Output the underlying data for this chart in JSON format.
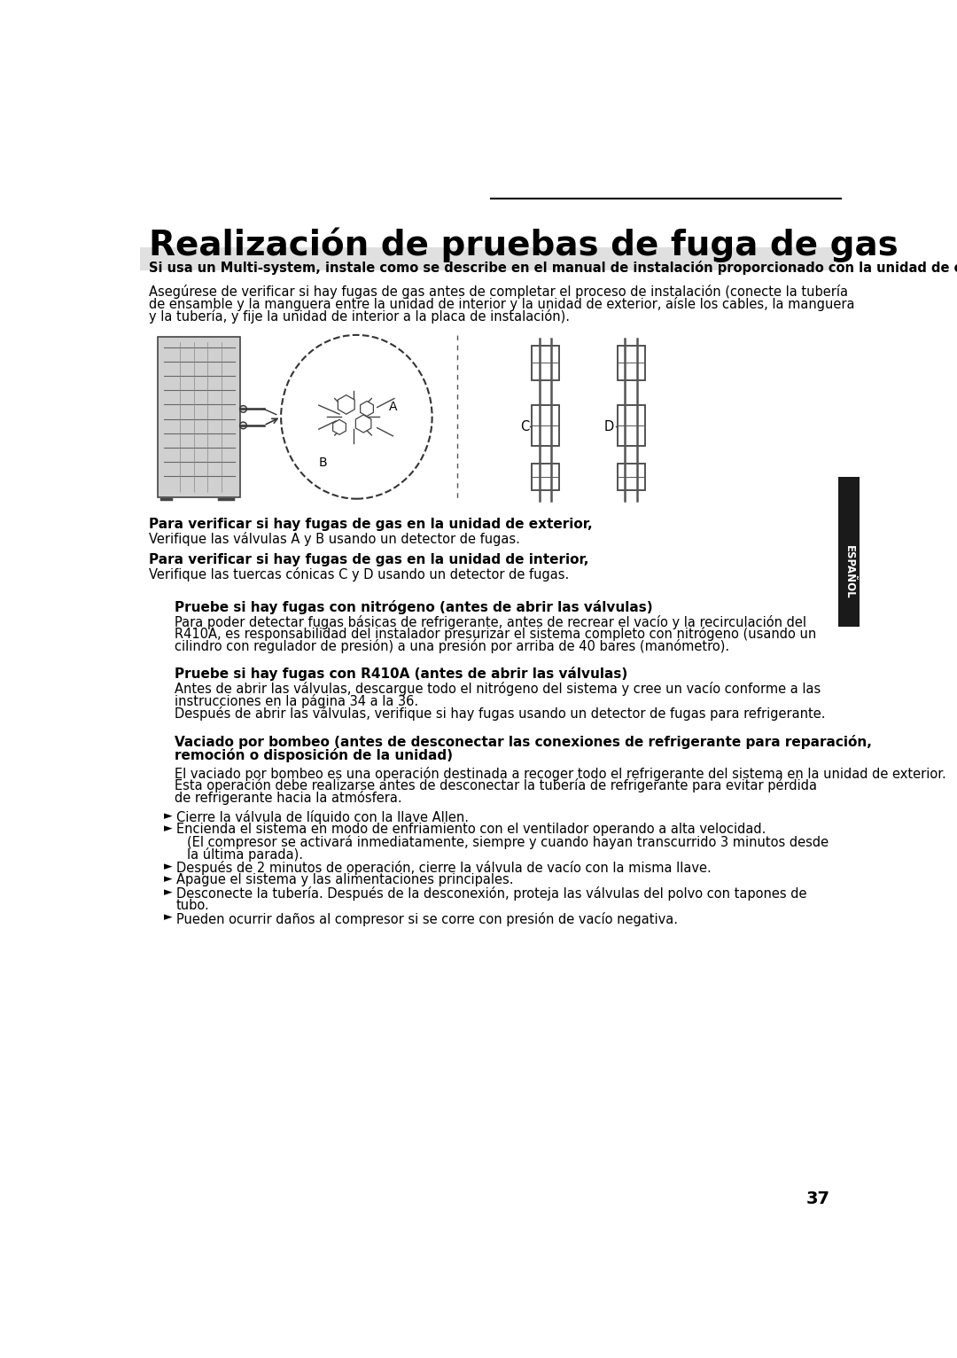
{
  "title": "Realización de pruebas de fuga de gas",
  "page_number": "37",
  "side_tab_text": "ESPAÑOL",
  "bg_color": "#ffffff",
  "note_bg_color": "#e0e0e0",
  "note_text": "Si usa un Multi-system, instale como se describe en el manual de instalación proporcionado con la unidad de exterior.",
  "intro_text": "Asegúrese de verificar si hay fugas de gas antes de completar el proceso de instalación (conecte la tubería de ensamble y la manguera entre la unidad de interior y la unidad de exterior, aísle los cables, la manguera y la tubería, y fije la unidad de interior a la placa de instalación).",
  "section1_heading": "Para verificar si hay fugas de gas en la unidad de exterior,",
  "section1_body": "Verifique las válvulas A y B usando un detector de fugas.",
  "section2_heading": "Para verificar si hay fugas de gas en la unidad de interior,",
  "section2_body": "Verifique las tuercas cónicas C y D usando un detector de fugas.",
  "section3_heading": "Pruebe si hay fugas con nitrógeno (antes de abrir las válvulas)",
  "section3_body": "Para poder detectar fugas básicas de refrigerante, antes de recrear el vacío y la recirculación del R410A, es responsabilidad del instalador presurizar el sistema completo con nitrógeno (usando un cilindro con regulador de presión) a una presión por arriba de 40 bares (manómetro).",
  "section4_heading": "Pruebe si hay fugas con R410A (antes de abrir las válvulas)",
  "section4_body_line1": "Antes de abrir las válvulas, descargue todo el nitrógeno del sistema y cree un vacío conforme a las instrucciones en la página 34 a la 36.",
  "section4_body_line2": "Después de abrir las válvulas, verifique si hay fugas usando un detector de fugas para refrigerante.",
  "section5_heading": "Vaciado por bombeo (antes de desconectar las conexiones de refrigerante para reparación, remoción o disposición de la unidad)",
  "section5_body_line1": "El vaciado por bombeo es una operación destinada a recoger todo el refrigerante del sistema en la unidad de exterior.",
  "section5_body_line2": "Esta operación debe realizarse antes de desconectar la tubería de refrigerante para evitar pérdida de refrigerante hacia la atmósfera.",
  "bullet_points": [
    "Cierre la válvula de líquido con la llave Allen.",
    "Encienda el sistema en modo de enfriamiento con el ventilador operando a alta velocidad.\n(El compresor se activará inmediatamente, siempre y cuando hayan transcurrido 3 minutos desde la última parada).",
    "Después de 2 minutos de operación, cierre la válvula de vacío con la misma llave.",
    "Apague el sistema y las alimentaciones principales.",
    "Desconecte la tubería. Después de la desconexión, proteja las válvulas del polvo con tapones de tubo.",
    "Pueden ocurrir daños al compresor si se corre con presión de vacío negativa."
  ]
}
